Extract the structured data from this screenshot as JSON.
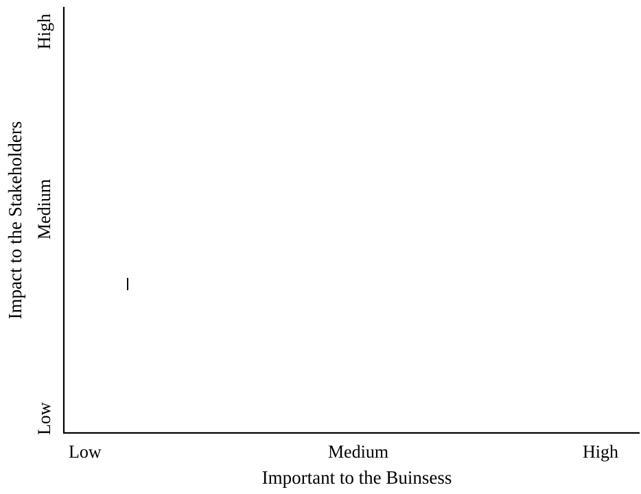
{
  "diagram": {
    "x_axis": {
      "title": "Important to the Buinsess",
      "levels": [
        "Low",
        "Medium",
        "High"
      ]
    },
    "y_axis": {
      "title": "Impact to the Stakeholders",
      "levels": [
        "Low",
        "Medium",
        "High"
      ]
    },
    "colors": {
      "axis": "#000000",
      "background": "#ffffff"
    }
  }
}
